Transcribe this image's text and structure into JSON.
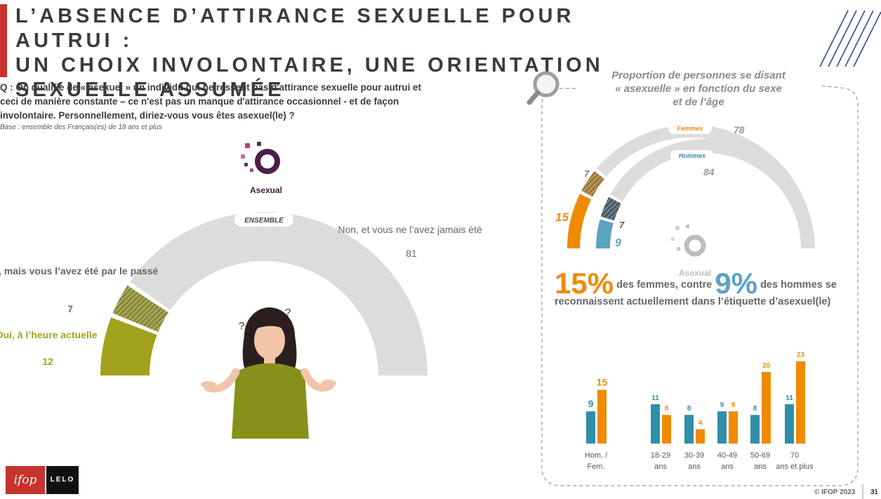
{
  "title": "L’ABSENCE D’ATTIRANCE SEXUELLE POUR AUTRUI :\nUN CHOIX INVOLONTAIRE, UNE ORIENTATION\nSEXUELLE ASSUMÉE",
  "question": "Q : On qualifie de « asexuel » un individu qui ne ressent pas d'attirance sexuelle pour autrui et\nceci de manière constante – ce n'est pas un manque d'attirance occasionnel - et de façon\ninvolontaire. Personnellement, diriez-vous vous êtes asexuel(le) ?",
  "base_note": "Base : ensemble des Français(es) de 18 ans et plus",
  "asexual_badge": "Asexual",
  "colors": {
    "olive": "#a2a21e",
    "grey": "#dcdcdc",
    "orange": "#f08a00",
    "teal": "#2f8fa8",
    "blue": "#5ba3c3",
    "brand_red": "#c8322d"
  },
  "chart_data": [
    {
      "type": "pie",
      "title": "ENSEMBLE",
      "style": "half-donut",
      "slices": [
        {
          "label": "Oui, à l’heure actuelle",
          "value": 12,
          "color": "#a2a21e",
          "pattern": "solid"
        },
        {
          "label": "Non, mais vous l’avez été par le passé",
          "value": 7,
          "color": "#a2a21e",
          "pattern": "hatched"
        },
        {
          "label": "Non, et vous ne l’avez jamais été",
          "value": 81,
          "color": "#dcdcdc",
          "pattern": "solid"
        }
      ]
    },
    {
      "type": "pie",
      "title": "Proportion de personnes se disant\n« asexuelle » en fonction du sexe\net de l’âge",
      "style": "nested-half-donut",
      "series": [
        {
          "name": "Femmes",
          "values": [
            15,
            7,
            78
          ],
          "color": "#f08a00"
        },
        {
          "name": "Hommes",
          "values": [
            9,
            7,
            84
          ],
          "color": "#5ba3c3"
        }
      ]
    },
    {
      "type": "bar",
      "categories": [
        "Hom. / Fem.",
        "18-29 ans",
        "30-39 ans",
        "40-49 ans",
        "50-69 ans",
        "70 ans et plus"
      ],
      "series": [
        {
          "values": [
            9,
            11,
            8,
            9,
            8,
            11
          ],
          "color": "#2f8fa8"
        },
        {
          "values": [
            15,
            8,
            4,
            9,
            20,
            23
          ],
          "color": "#f08a00"
        }
      ]
    }
  ],
  "headline": {
    "women_pct": "15%",
    "text1": "des femmes, contre",
    "men_pct": "9%",
    "text2": "des hommes se reconnaissent actuellement dans l’étiquette d’asexuel(le)"
  },
  "footer": {
    "copyright": "© IFOP 2023",
    "page": "31",
    "logo_ifop": "ifop",
    "logo_lelo": "LELO"
  },
  "icons": [
    "magnifier-icon",
    "question-mark-icon",
    "asexual-logo-icon",
    "woman-shrug-illustration"
  ]
}
